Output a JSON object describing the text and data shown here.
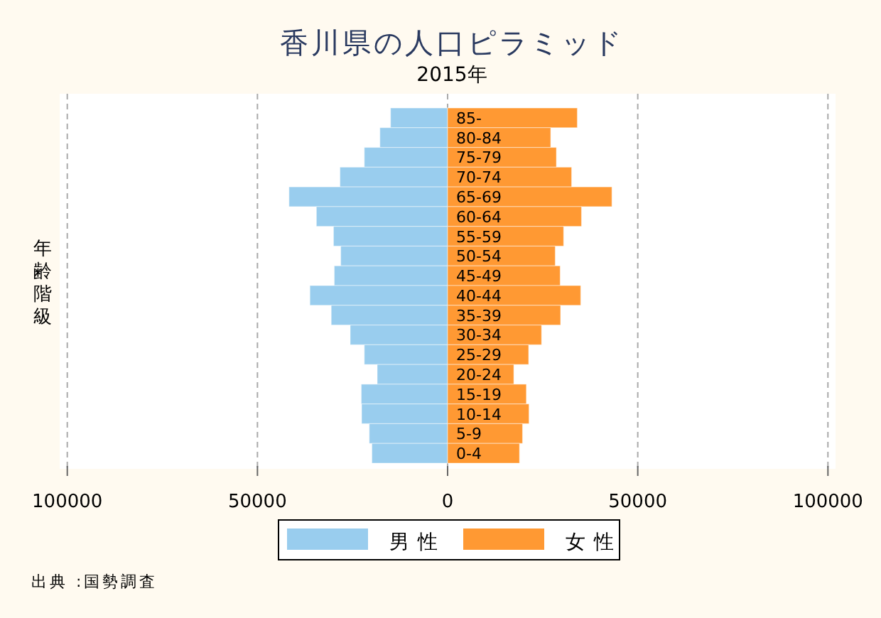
{
  "chart_data": {
    "type": "bar",
    "orientation": "horizontal",
    "stacked": true,
    "title": "香川県の人口ピラミッド",
    "subtitle": "2015年",
    "ylabel": "年齢階級",
    "categories": [
      "85-",
      "80-84",
      "75-79",
      "70-74",
      "65-69",
      "60-64",
      "55-59",
      "50-54",
      "45-49",
      "40-44",
      "35-39",
      "30-34",
      "25-29",
      "20-24",
      "15-19",
      "10-14",
      "5-9",
      "0-4"
    ],
    "series": [
      {
        "name": "男性",
        "color": "#99cdee",
        "values": [
          -15000,
          -17800,
          -21900,
          -28300,
          -41700,
          -34500,
          -30000,
          -28100,
          -29800,
          -36200,
          -30600,
          -25600,
          -21900,
          -18500,
          -22700,
          -22600,
          -20600,
          -19900
        ]
      },
      {
        "name": "女性",
        "color": "#ff9933",
        "values": [
          34100,
          27100,
          28600,
          32600,
          43200,
          35200,
          30500,
          28300,
          29600,
          35000,
          29700,
          24700,
          21300,
          17400,
          20700,
          21400,
          19700,
          18900
        ]
      }
    ],
    "xlim": [
      -102000,
      102000
    ],
    "xticks": [
      {
        "value": -100000,
        "label": "100000"
      },
      {
        "value": -50000,
        "label": "50000"
      },
      0,
      50000,
      100000
    ],
    "grid": "x",
    "legend": "bottom",
    "annotations": [
      "出典 :国勢調査"
    ]
  }
}
